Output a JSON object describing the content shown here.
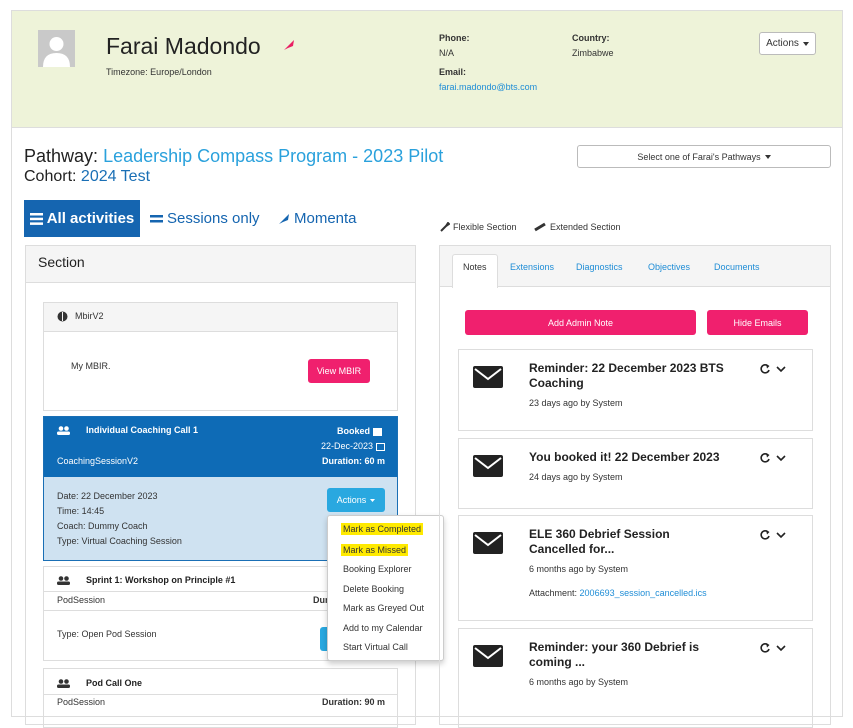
{
  "header": {
    "name": "Farai Madondo",
    "timezone": "Timezone: Europe/London",
    "phone_label": "Phone:",
    "phone": "N/A",
    "email_label": "Email:",
    "email": "farai.madondo@bts.com",
    "country_label": "Country:",
    "country": "Zimbabwe",
    "actions": "Actions"
  },
  "pathway": {
    "label": "Pathway:",
    "name": "Leadership Compass Program - 2023 Pilot",
    "cohort_label": "Cohort:",
    "cohort": "2024 Test",
    "select": "Select one of Farai's Pathways"
  },
  "view_tabs": [
    "All activities",
    "Sessions only",
    "Momenta"
  ],
  "legend": [
    "Flexible Section",
    "Extended Section"
  ],
  "section": {
    "title": "Section",
    "mbir": {
      "title": "MbirV2",
      "text": "My MBIR.",
      "button": "View MBIR"
    },
    "coaching": {
      "title": "Individual Coaching Call 1",
      "status": "Booked",
      "date": "22-Dec-2023",
      "kind": "CoachingSessionV2",
      "duration": "Duration: 60 m",
      "details": [
        "Date: 22 December 2023",
        "Time: 14:45",
        "Coach: Dummy Coach",
        "Type: Virtual Coaching Session"
      ],
      "button": "Actions"
    },
    "sprint": {
      "title": "Sprint 1: Workshop on Principle #1",
      "kind": "PodSession",
      "duration": "Duration:",
      "type": "Type: Open Pod Session"
    },
    "pod": {
      "title": "Pod Call One",
      "kind": "PodSession",
      "duration": "Duration: 90 m"
    }
  },
  "dropdown": [
    "Mark as Completed",
    "Mark as Missed",
    "Booking Explorer",
    "Delete Booking",
    "Mark as Greyed Out",
    "Add to my Calendar",
    "Start Virtual Call"
  ],
  "notes_tabs": [
    "Notes",
    "Extensions",
    "Diagnostics",
    "Objectives",
    "Documents"
  ],
  "note_buttons": [
    "Add Admin Note",
    "Hide Emails"
  ],
  "notes": [
    {
      "title": "Reminder: 22 December 2023 BTS Coaching",
      "meta": "23 days ago by System"
    },
    {
      "title": "You booked it! 22 December 2023",
      "meta": "24 days ago by System"
    },
    {
      "title": "ELE 360 Debrief Session Cancelled for...",
      "meta": "6 months ago by System",
      "attachment_label": "Attachment:",
      "attachment": "2006693_session_cancelled.ics"
    },
    {
      "title": "Reminder: your 360 Debrief is coming ...",
      "meta": "6 months ago by System"
    }
  ]
}
